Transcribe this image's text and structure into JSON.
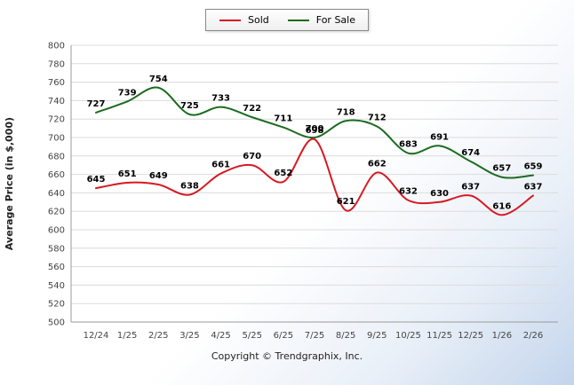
{
  "legend": {
    "items": [
      {
        "label": "Sold",
        "color": "#d71a22"
      },
      {
        "label": "For Sale",
        "color": "#1b6b1f"
      }
    ]
  },
  "footer": {
    "copyright": "Copyright © Trendgraphix, Inc."
  },
  "chart_data": {
    "type": "line",
    "title": "",
    "xlabel": "",
    "ylabel": "Average Price (in $,000)",
    "ylim": [
      500,
      800
    ],
    "ytick_step": 20,
    "grid": true,
    "legend_position": "top",
    "categories": [
      "12/24",
      "1/25",
      "2/25",
      "3/25",
      "4/25",
      "5/25",
      "6/25",
      "7/25",
      "8/25",
      "9/25",
      "10/25",
      "11/25",
      "12/25",
      "1/26",
      "2/26"
    ],
    "series": [
      {
        "name": "Sold",
        "color": "#d71a22",
        "values": [
          645,
          651,
          649,
          638,
          661,
          670,
          652,
          698,
          621,
          662,
          632,
          630,
          637,
          616,
          637
        ]
      },
      {
        "name": "For Sale",
        "color": "#1b6b1f",
        "values": [
          727,
          739,
          754,
          725,
          733,
          722,
          711,
          700,
          718,
          712,
          683,
          691,
          674,
          657,
          659
        ]
      }
    ]
  }
}
